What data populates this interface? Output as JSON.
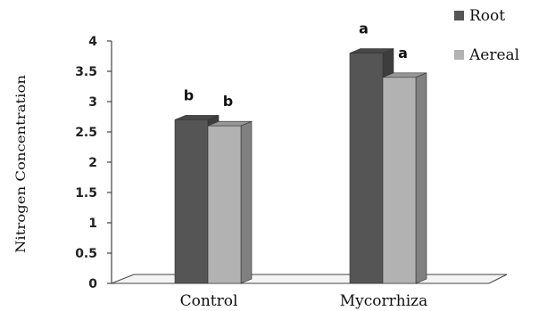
{
  "chart_data": {
    "type": "bar",
    "categories": [
      "Control",
      "Mycorrhiza"
    ],
    "series": [
      {
        "name": "Root",
        "values": [
          2.7,
          3.8
        ],
        "labels": [
          "b",
          "a"
        ],
        "color": "#555555"
      },
      {
        "name": "Aereal",
        "values": [
          2.6,
          3.4
        ],
        "labels": [
          "b",
          "a"
        ],
        "color": "#b2b2b2"
      }
    ],
    "ylabel": "Nitrogen Concentration",
    "xlabel": "",
    "ylim": [
      0,
      4
    ],
    "yticks": [
      "0",
      "0.5",
      "1",
      "1.5",
      "2",
      "2.5",
      "3",
      "3.5",
      "4"
    ],
    "grid": false,
    "legend": "top-right",
    "style": "3d-column"
  }
}
